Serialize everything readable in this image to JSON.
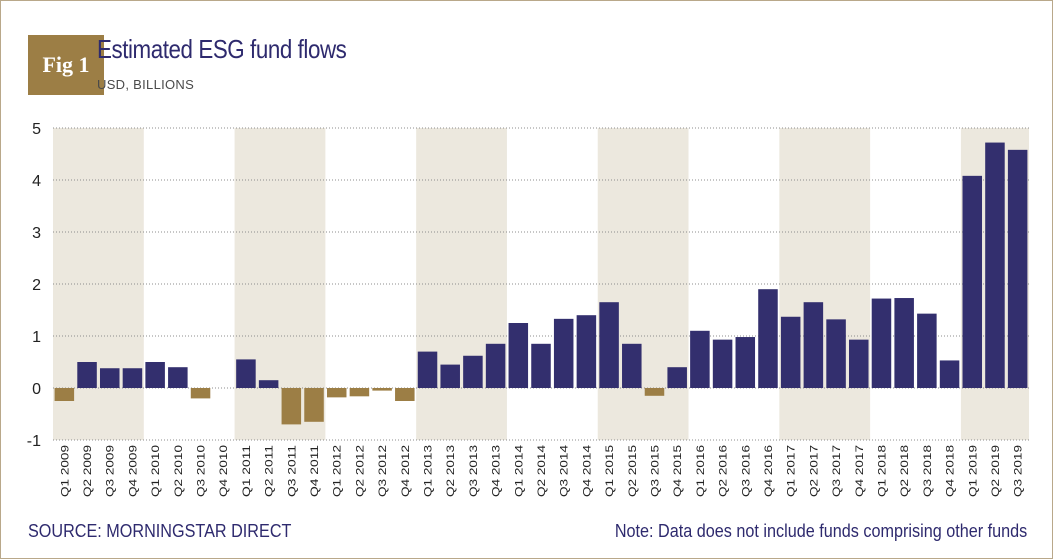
{
  "badge": "Fig 1",
  "colors": {
    "positive": "#332f6e",
    "negative": "#9c7e45",
    "band": "#ece8de",
    "grid": "#8c8c8c",
    "axis_text": "#222222"
  },
  "footer": {
    "source": "SOURCE: MORNINGSTAR DIRECT",
    "note": "Note: Data does not include funds comprising other funds"
  },
  "chart_data": {
    "type": "bar",
    "title": "Estimated ESG fund flows",
    "subtitle": "USD, BILLIONS",
    "ylim": [
      -1,
      5
    ],
    "yticks": [
      -1,
      0,
      1,
      2,
      3,
      4,
      5
    ],
    "grid": true,
    "legend": "none",
    "shaded_years": [
      "2009",
      "2011",
      "2013",
      "2015",
      "2017",
      "2019"
    ],
    "categories": [
      "Q1 2009",
      "Q2 2009",
      "Q3 2009",
      "Q4 2009",
      "Q1 2010",
      "Q2 2010",
      "Q3 2010",
      "Q4 2010",
      "Q1 2011",
      "Q2 2011",
      "Q3 2011",
      "Q4 2011",
      "Q1 2012",
      "Q2 2012",
      "Q3 2012",
      "Q4 2012",
      "Q1 2013",
      "Q2 2013",
      "Q3 2013",
      "Q4 2013",
      "Q1 2014",
      "Q2 2014",
      "Q3 2014",
      "Q4 2014",
      "Q1 2015",
      "Q2 2015",
      "Q3 2015",
      "Q4 2015",
      "Q1 2016",
      "Q2 2016",
      "Q3 2016",
      "Q4 2016",
      "Q1 2017",
      "Q2 2017",
      "Q3 2017",
      "Q4 2017",
      "Q1 2018",
      "Q2 2018",
      "Q3 2018",
      "Q4 2018",
      "Q1 2019",
      "Q2 2019",
      "Q3 2019"
    ],
    "values": [
      -0.25,
      0.5,
      0.38,
      0.38,
      0.5,
      0.4,
      -0.2,
      0,
      0.55,
      0.15,
      -0.7,
      -0.65,
      -0.18,
      -0.16,
      -0.05,
      -0.25,
      0.7,
      0.45,
      0.62,
      0.85,
      1.25,
      0.85,
      1.33,
      1.4,
      1.65,
      0.85,
      -0.15,
      0.4,
      1.1,
      0.93,
      0.98,
      1.9,
      1.37,
      1.65,
      1.32,
      0.93,
      1.72,
      1.73,
      1.43,
      0.53,
      4.08,
      4.72,
      4.58
    ]
  }
}
